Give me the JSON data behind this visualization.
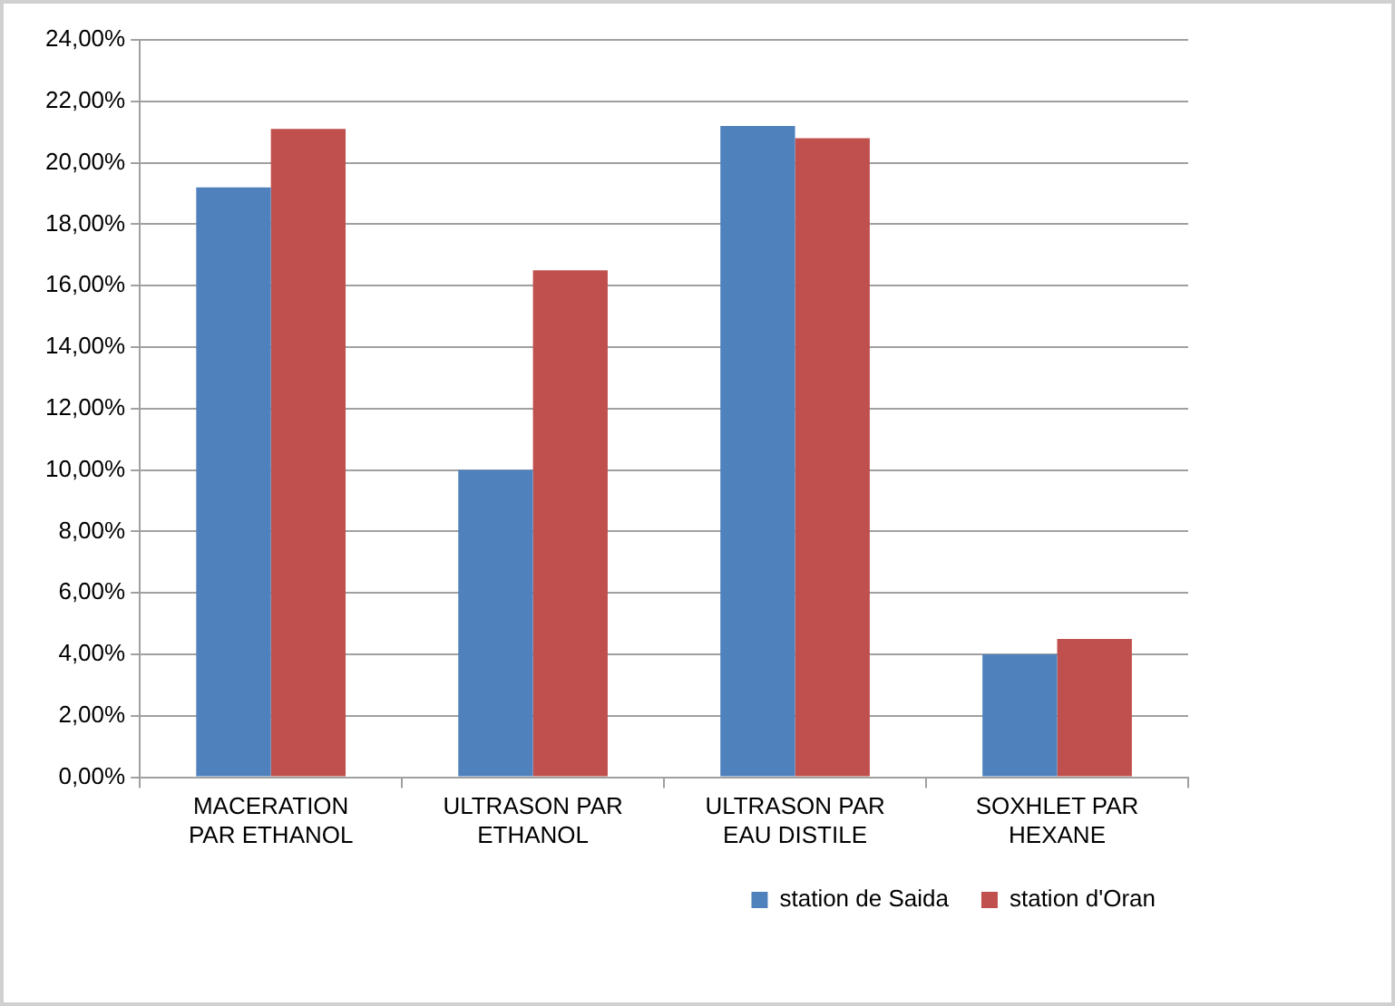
{
  "chart_data": {
    "type": "bar",
    "categories": [
      "MACERATION PAR ETHANOL",
      "ULTRASON PAR ETHANOL",
      "ULTRASON PAR EAU DISTILE",
      "SOXHLET PAR HEXANE"
    ],
    "series": [
      {
        "name": "station de Saida",
        "color": "#4f81bd",
        "values": [
          19.2,
          10.0,
          21.2,
          4.0
        ]
      },
      {
        "name": "station d'Oran",
        "color": "#c0504d",
        "values": [
          21.1,
          16.5,
          20.8,
          4.5
        ]
      }
    ],
    "ylim": [
      0,
      24
    ],
    "yticks": [
      {
        "value": 0,
        "label": "0,00%"
      },
      {
        "value": 2,
        "label": "2,00%"
      },
      {
        "value": 4,
        "label": "4,00%"
      },
      {
        "value": 6,
        "label": "6,00%"
      },
      {
        "value": 8,
        "label": "8,00%"
      },
      {
        "value": 10,
        "label": "10,00%"
      },
      {
        "value": 12,
        "label": "12,00%"
      },
      {
        "value": 14,
        "label": "14,00%"
      },
      {
        "value": 16,
        "label": "16,00%"
      },
      {
        "value": 18,
        "label": "18,00%"
      },
      {
        "value": 20,
        "label": "20,00%"
      },
      {
        "value": 22,
        "label": "22,00%"
      },
      {
        "value": 24,
        "label": "24,00%"
      }
    ],
    "grid": "y",
    "legend": "bottom"
  }
}
